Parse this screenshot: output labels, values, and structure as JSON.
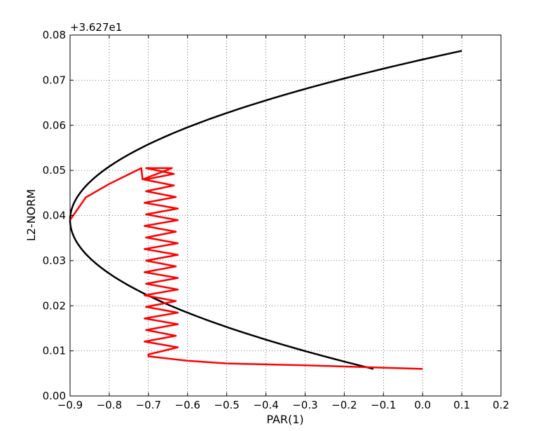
{
  "chart_data": {
    "type": "line",
    "xlabel": "PAR(1)",
    "ylabel": "L2-NORM",
    "y_offset_label": "+3.627e1",
    "xlim": [
      -0.9,
      0.2
    ],
    "ylim": [
      0.0,
      0.08
    ],
    "xticks": [
      "−0.9",
      "−0.8",
      "−0.7",
      "−0.6",
      "−0.5",
      "−0.4",
      "−0.3",
      "−0.2",
      "−0.1",
      "0.0",
      "0.1",
      "0.2"
    ],
    "yticks": [
      "0.00",
      "0.01",
      "0.02",
      "0.03",
      "0.04",
      "0.05",
      "0.06",
      "0.07",
      "0.08"
    ],
    "grid": true,
    "series": [
      {
        "color": "#000000",
        "shape": "parabola",
        "vertex": [
          -0.9,
          0.039
        ],
        "y_range": [
          0.006,
          0.0765
        ],
        "endpoints": [
          [
            0.0,
            0.006
          ],
          [
            0.1,
            0.0765
          ]
        ]
      },
      {
        "color": "#ff0000",
        "shape": "zigzag",
        "start": [
          0.0,
          0.006
        ],
        "points": [
          [
            0.0,
            0.006
          ],
          [
            -0.3,
            0.0068
          ],
          [
            -0.5,
            0.0072
          ],
          [
            -0.6,
            0.0078
          ],
          [
            -0.7,
            0.0088
          ],
          [
            -0.7,
            0.0092
          ]
        ],
        "zigzag_x_range": [
          -0.71,
          -0.625
        ],
        "zigzag_y_range": [
          0.0095,
          0.0505
        ],
        "zigzag_cycles": 16,
        "tail_points": [
          [
            -0.64,
            0.0505
          ],
          [
            -0.715,
            0.048
          ],
          [
            -0.718,
            0.0505
          ],
          [
            -0.8,
            0.047
          ],
          [
            -0.86,
            0.044
          ],
          [
            -0.9,
            0.039
          ]
        ]
      }
    ]
  }
}
